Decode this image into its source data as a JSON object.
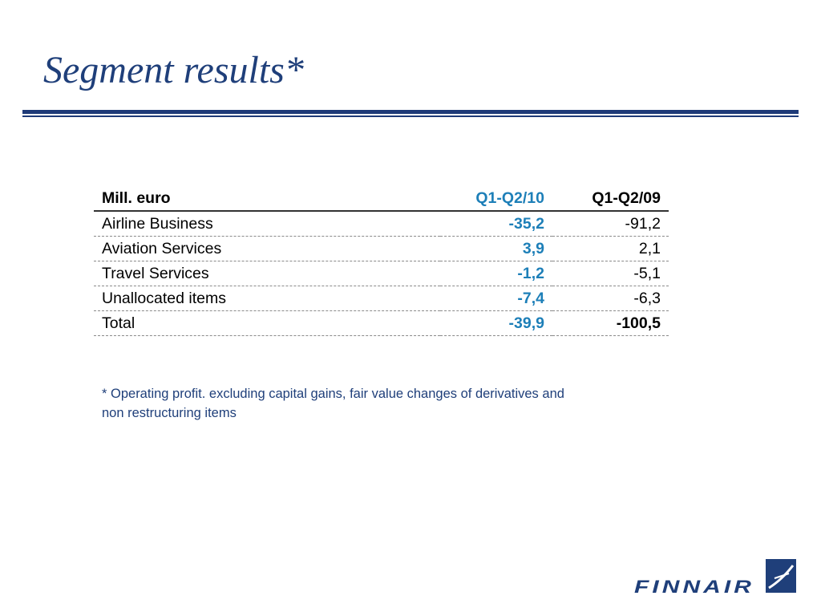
{
  "slide": {
    "title": "Segment results*"
  },
  "table": {
    "header": {
      "label": "Mill. euro",
      "current": "Q1-Q2/10",
      "previous": "Q1-Q2/09"
    },
    "rows": [
      {
        "label": "Airline Business",
        "current": "-35,2",
        "previous": "-91,2"
      },
      {
        "label": "Aviation Services",
        "current": "3,9",
        "previous": "2,1"
      },
      {
        "label": "Travel Services",
        "current": "-1,2",
        "previous": "-5,1"
      },
      {
        "label": "Unallocated items",
        "current": "-7,4",
        "previous": "-6,3"
      },
      {
        "label": "Total",
        "current": "-39,9",
        "previous": "-100,5"
      }
    ]
  },
  "footnote": {
    "text": "* Operating profit. excluding capital gains, fair value changes of derivatives and non restructuring items"
  },
  "logo": {
    "text": "FINNAIR",
    "icon": "finnair-emblem-icon"
  },
  "colors": {
    "title": "#1f3f7a",
    "rule": "#1e3a78",
    "current_period": "#1d7fb8",
    "footnote": "#1f3f7a",
    "logo": "#1f3f7a"
  }
}
